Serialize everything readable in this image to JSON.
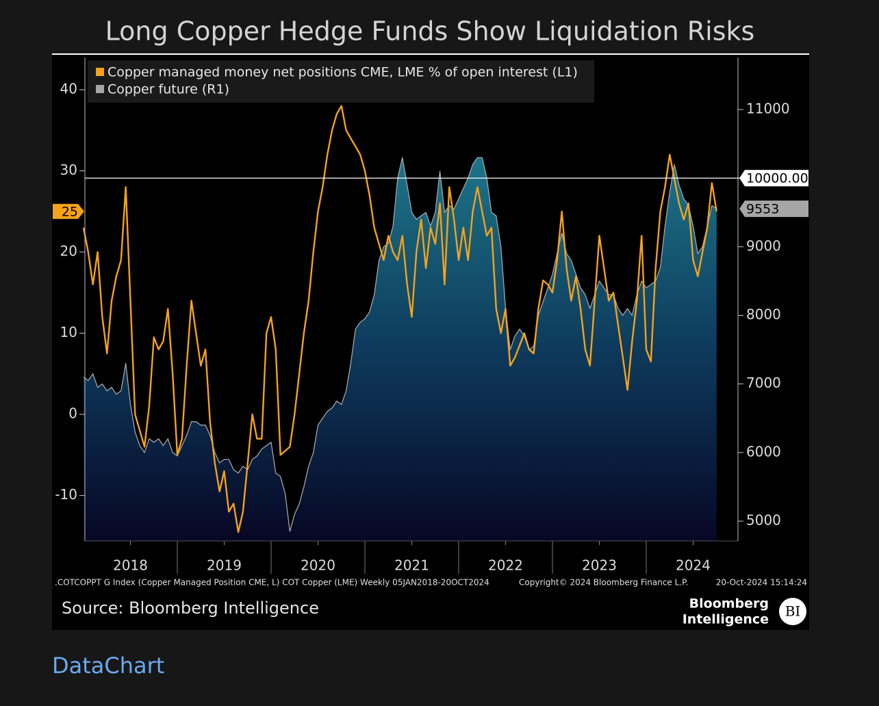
{
  "chart_data": {
    "type": "line",
    "title": "Long Copper Hedge Funds Show Liquidation Risks",
    "x": [
      2018,
      2018.05,
      2018.1,
      2018.15,
      2018.2,
      2018.25,
      2018.3,
      2018.35,
      2018.4,
      2018.45,
      2018.5,
      2018.55,
      2018.6,
      2018.65,
      2018.7,
      2018.75,
      2018.8,
      2018.85,
      2018.9,
      2018.95,
      2019,
      2019.05,
      2019.1,
      2019.15,
      2019.2,
      2019.25,
      2019.3,
      2019.35,
      2019.4,
      2019.45,
      2019.5,
      2019.55,
      2019.6,
      2019.65,
      2019.7,
      2019.75,
      2019.8,
      2019.85,
      2019.9,
      2019.95,
      2020,
      2020.05,
      2020.1,
      2020.15,
      2020.2,
      2020.25,
      2020.3,
      2020.35,
      2020.4,
      2020.45,
      2020.5,
      2020.55,
      2020.6,
      2020.65,
      2020.7,
      2020.75,
      2020.8,
      2020.85,
      2020.9,
      2020.95,
      2021,
      2021.05,
      2021.1,
      2021.15,
      2021.2,
      2021.25,
      2021.3,
      2021.35,
      2021.4,
      2021.45,
      2021.5,
      2021.55,
      2021.6,
      2021.65,
      2021.7,
      2021.75,
      2021.8,
      2021.85,
      2021.9,
      2021.95,
      2022,
      2022.05,
      2022.1,
      2022.15,
      2022.2,
      2022.25,
      2022.3,
      2022.35,
      2022.4,
      2022.45,
      2022.5,
      2022.55,
      2022.6,
      2022.65,
      2022.7,
      2022.75,
      2022.8,
      2022.85,
      2022.9,
      2022.95,
      2023,
      2023.05,
      2023.1,
      2023.15,
      2023.2,
      2023.25,
      2023.3,
      2023.35,
      2023.4,
      2023.45,
      2023.5,
      2023.55,
      2023.6,
      2023.65,
      2023.7,
      2023.75,
      2023.8,
      2023.85,
      2023.9,
      2023.95,
      2024,
      2024.05,
      2024.1,
      2024.15,
      2024.2,
      2024.25,
      2024.3,
      2024.35,
      2024.4,
      2024.45,
      2024.5,
      2024.55,
      2024.6,
      2024.65,
      2024.7,
      2024.75
    ],
    "series": [
      {
        "name": "Copper managed money net positions CME, LME % of open interest (L1)",
        "color": "#f7a21b",
        "values": [
          23,
          20,
          16,
          20,
          12,
          7.5,
          14,
          17,
          19,
          28,
          14,
          0,
          -2,
          -4,
          1,
          9.5,
          8,
          9,
          13,
          5,
          -5,
          -3,
          6,
          14,
          10,
          6,
          8,
          -1,
          -6,
          -9.5,
          -7,
          -12,
          -11,
          -14.5,
          -12,
          -6,
          0,
          -3,
          -3,
          10,
          12,
          8,
          -5,
          -4.5,
          -4,
          0,
          5,
          10,
          14,
          20,
          25,
          28,
          32,
          35,
          37,
          38,
          35,
          34,
          33,
          32,
          30,
          27,
          23,
          21,
          19,
          22,
          20,
          19,
          22,
          16,
          12,
          20,
          24,
          18,
          23,
          21,
          26,
          16,
          28,
          24,
          19,
          23,
          19,
          25,
          28,
          25,
          22,
          23,
          13,
          10,
          13,
          6,
          7,
          8.5,
          10,
          8,
          7.5,
          13,
          16.5,
          16,
          15,
          19,
          25,
          18,
          14,
          17,
          13,
          8,
          6,
          14,
          22,
          18,
          14,
          15,
          11,
          7,
          3,
          9,
          14,
          22,
          8,
          6.5,
          18,
          25,
          28,
          32,
          29,
          26,
          24,
          26,
          19,
          17,
          20,
          23,
          28.5,
          25
        ]
      },
      {
        "name": "Copper future (R1)",
        "color": "#a6a6a6",
        "axis": "y2",
        "values": [
          7100,
          7050,
          7150,
          6950,
          7000,
          6900,
          6950,
          6850,
          6900,
          7300,
          6700,
          6300,
          6100,
          6000,
          6200,
          6150,
          6200,
          6100,
          6200,
          6000,
          5950,
          6100,
          6250,
          6450,
          6450,
          6400,
          6400,
          6250,
          6000,
          5850,
          5900,
          5900,
          5750,
          5700,
          5800,
          5750,
          5900,
          5950,
          6050,
          6100,
          6150,
          5700,
          5650,
          5400,
          4850,
          5100,
          5250,
          5500,
          5800,
          6000,
          6400,
          6500,
          6600,
          6650,
          6750,
          6700,
          6900,
          7300,
          7800,
          7900,
          7950,
          8050,
          8300,
          8800,
          9000,
          9050,
          9300,
          10000,
          10300,
          9900,
          9500,
          9400,
          9450,
          9500,
          9300,
          9500,
          10100,
          9500,
          9600,
          9550,
          9700,
          9850,
          10000,
          10200,
          10300,
          10300,
          10000,
          9500,
          9450,
          9000,
          8100,
          7500,
          7700,
          7800,
          7700,
          7500,
          7550,
          8000,
          8200,
          8400,
          8600,
          8900,
          9200,
          8900,
          8800,
          8600,
          8400,
          8300,
          8100,
          8300,
          8500,
          8400,
          8300,
          8300,
          8100,
          8000,
          8100,
          8000,
          8300,
          8500,
          8400,
          8450,
          8500,
          8700,
          9300,
          9800,
          10200,
          9900,
          9700,
          9600,
          9300,
          8900,
          9000,
          9300,
          9600,
          9553
        ]
      }
    ],
    "xlim": [
      2018,
      2025
    ],
    "xticks": [
      {
        "value": 2018.5,
        "label": "2018"
      },
      {
        "value": 2019.5,
        "label": "2019"
      },
      {
        "value": 2020.5,
        "label": "2020"
      },
      {
        "value": 2021.5,
        "label": "2021"
      },
      {
        "value": 2022.5,
        "label": "2022"
      },
      {
        "value": 2023.5,
        "label": "2023"
      },
      {
        "value": 2024.5,
        "label": "2024"
      }
    ],
    "ylim": [
      -15.6,
      44.3
    ],
    "yticks": [
      -10,
      0,
      10,
      20,
      30,
      40
    ],
    "y2lim": [
      4711,
      11798
    ],
    "y2ticks": [
      5000,
      6000,
      7000,
      8000,
      9000,
      10000,
      11000
    ],
    "ref_line": {
      "value": 10000,
      "label": "10000.00"
    },
    "legend": "top-left"
  },
  "footer": {
    "index": ".COTCOPPT G Index (Copper Managed Position CME, L) COT Copper (LME)  Weekly 05JAN2018-20OCT2024",
    "copyright": "Copyright© 2024 Bloomberg Finance L.P.",
    "timestamp": "20-Oct-2024 15:14:24",
    "source": "Source: Bloomberg Intelligence",
    "logo_line1": "Bloomberg",
    "logo_line2": "Intelligence",
    "logo_badge": "BI"
  },
  "link": "DataChart"
}
